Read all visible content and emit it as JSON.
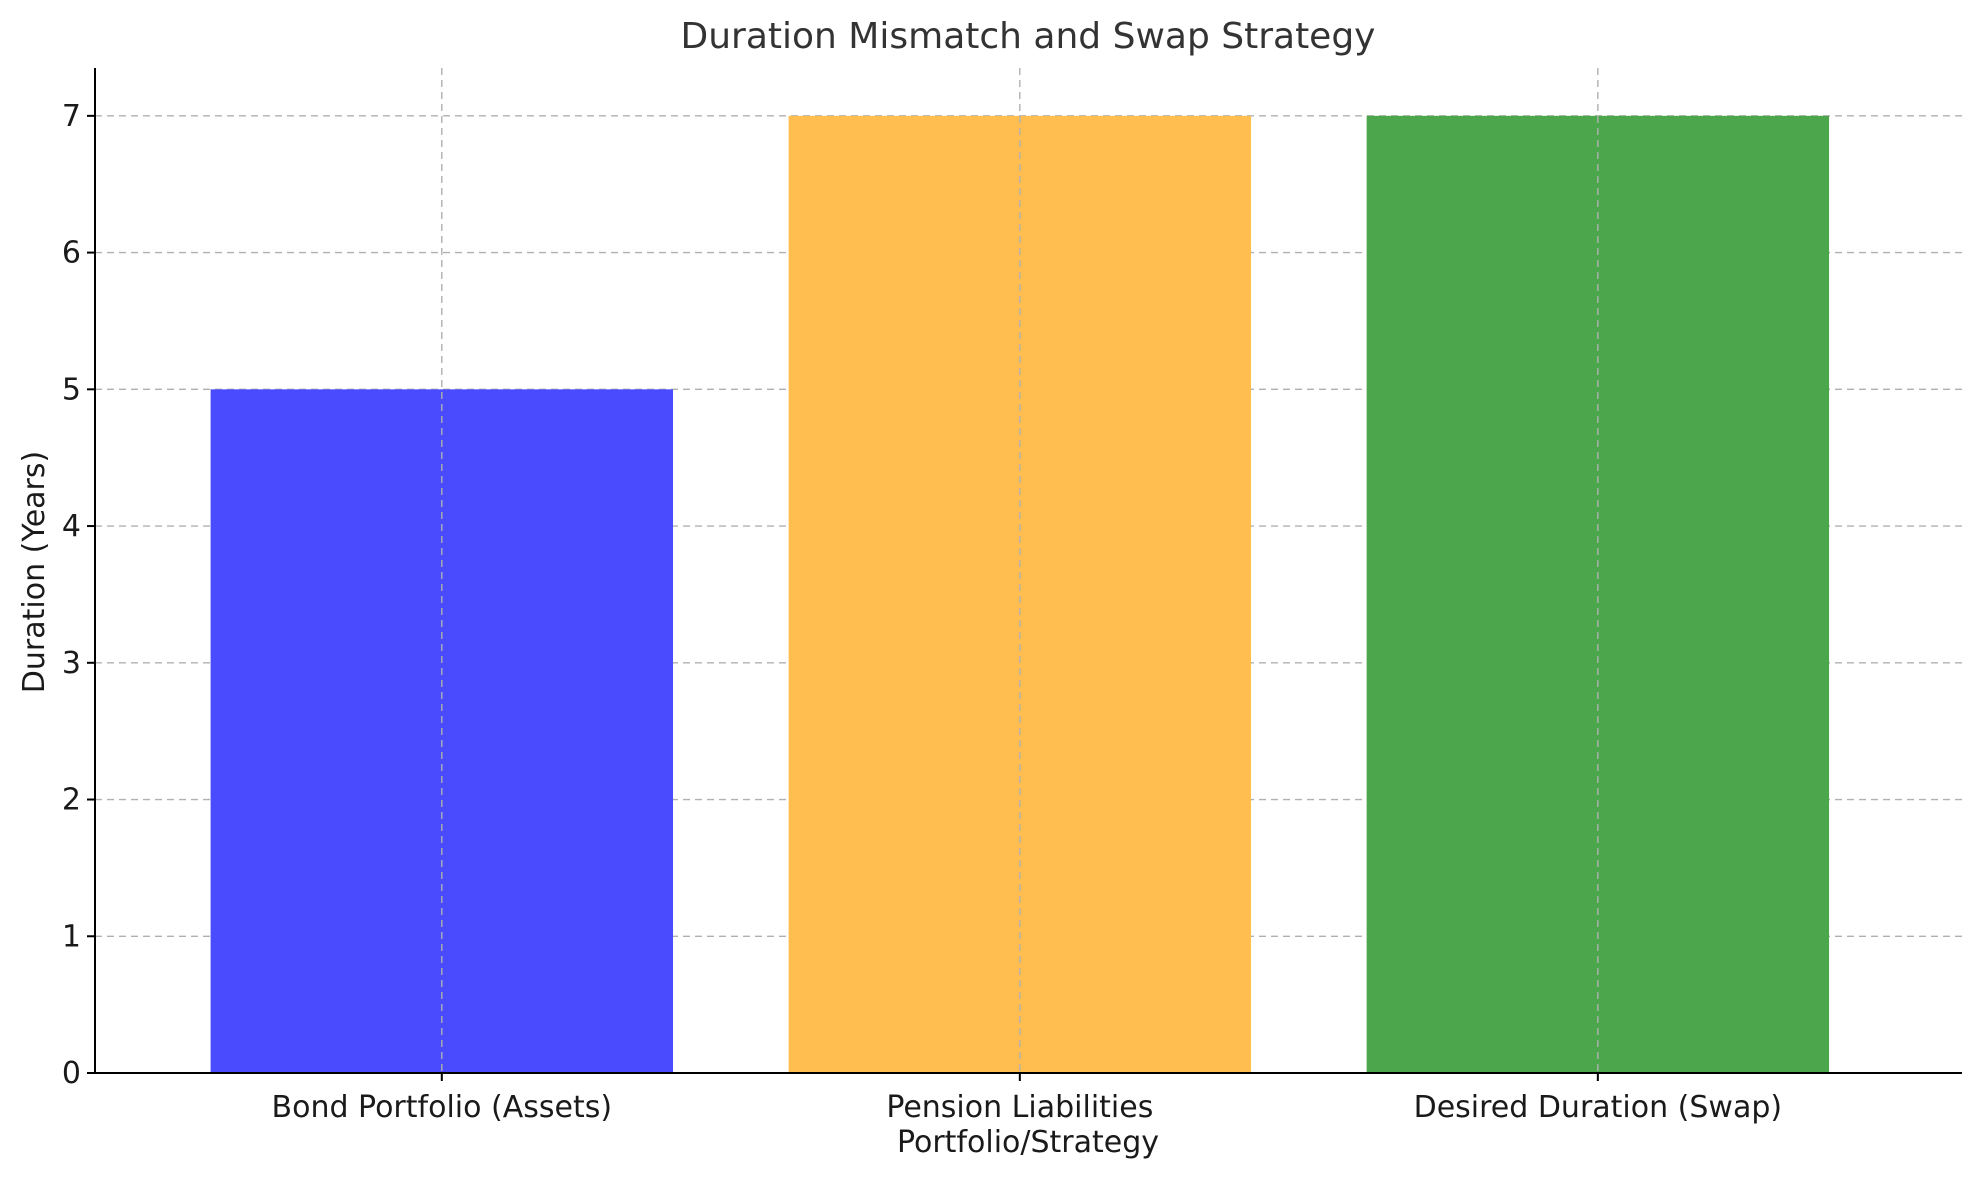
{
  "chart_data": {
    "type": "bar",
    "title": "Duration Mismatch and Swap Strategy",
    "xlabel": "Portfolio/Strategy",
    "ylabel": "Duration (Years)",
    "categories": [
      "Bond Portfolio (Assets)",
      "Pension Liabilities",
      "Desired Duration (Swap)"
    ],
    "values": [
      5,
      7,
      7
    ],
    "colors": [
      "#4a4aff",
      "#ffbe4f",
      "#4ca64c"
    ],
    "ylim": [
      0,
      7.35
    ],
    "yticks": [
      0,
      1,
      2,
      3,
      4,
      5,
      6,
      7
    ],
    "grid": true,
    "legend": "none"
  }
}
